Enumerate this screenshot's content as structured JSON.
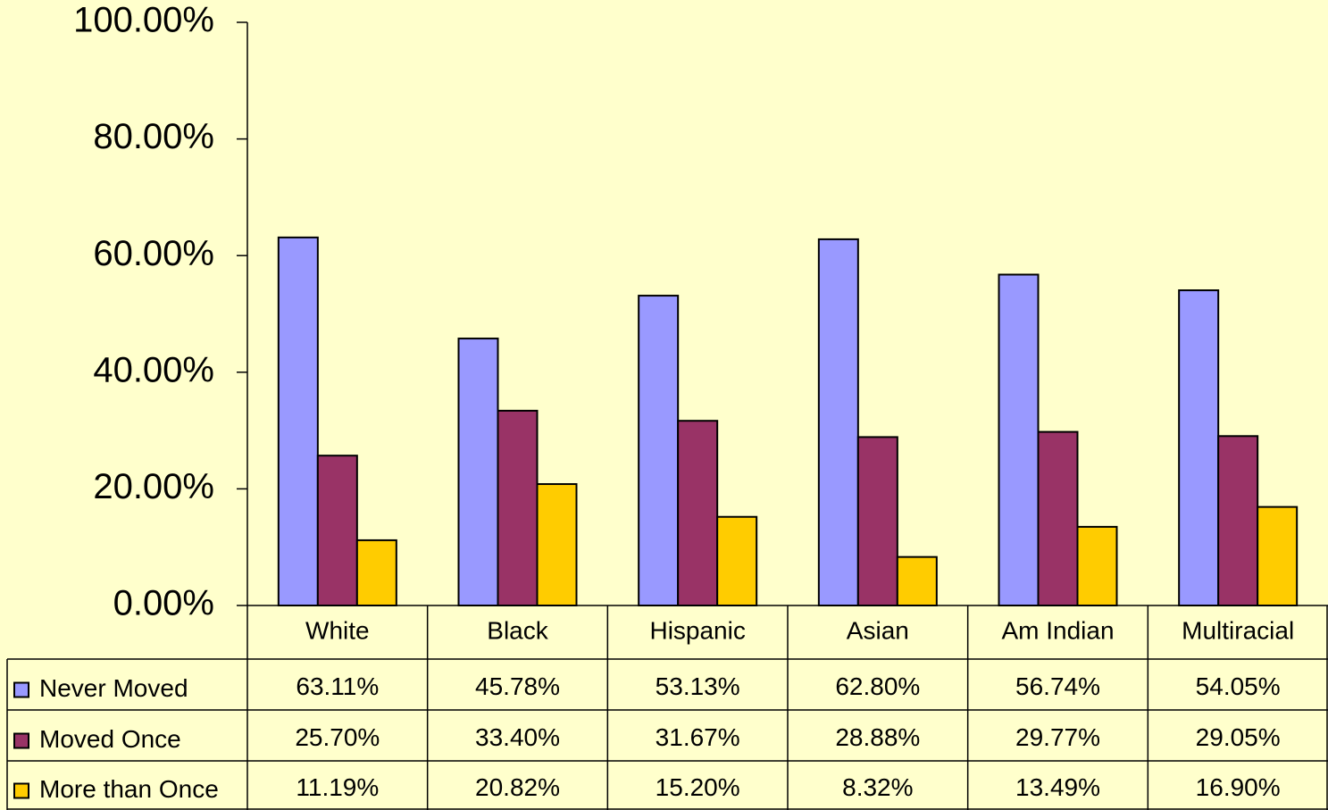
{
  "chart_data": {
    "type": "bar",
    "categories": [
      "White",
      "Black",
      "Hispanic",
      "Asian",
      "Am Indian",
      "Multiracial"
    ],
    "series": [
      {
        "name": "Never Moved",
        "color": "#9999ff",
        "values": [
          63.11,
          45.78,
          53.13,
          62.8,
          56.74,
          54.05
        ],
        "value_labels": [
          "63.11%",
          "45.78%",
          "53.13%",
          "62.80%",
          "56.74%",
          "54.05%"
        ]
      },
      {
        "name": "Moved Once",
        "color": "#993366",
        "values": [
          25.7,
          33.4,
          31.67,
          28.88,
          29.77,
          29.05
        ],
        "value_labels": [
          "25.70%",
          "33.40%",
          "31.67%",
          "28.88%",
          "29.77%",
          "29.05%"
        ]
      },
      {
        "name": "More than Once",
        "color": "#ffcc00",
        "values": [
          11.19,
          20.82,
          15.2,
          8.32,
          13.49,
          16.9
        ],
        "value_labels": [
          "11.19%",
          "20.82%",
          "15.20%",
          "8.32%",
          "13.49%",
          "16.90%"
        ]
      }
    ],
    "ylim": [
      0,
      100
    ],
    "yticks": [
      {
        "value": 0,
        "label": "0.00%"
      },
      {
        "value": 20,
        "label": "20.00%"
      },
      {
        "value": 40,
        "label": "40.00%"
      },
      {
        "value": 60,
        "label": "60.00%"
      },
      {
        "value": 80,
        "label": "80.00%"
      },
      {
        "value": 100,
        "label": "100.00%"
      }
    ]
  }
}
